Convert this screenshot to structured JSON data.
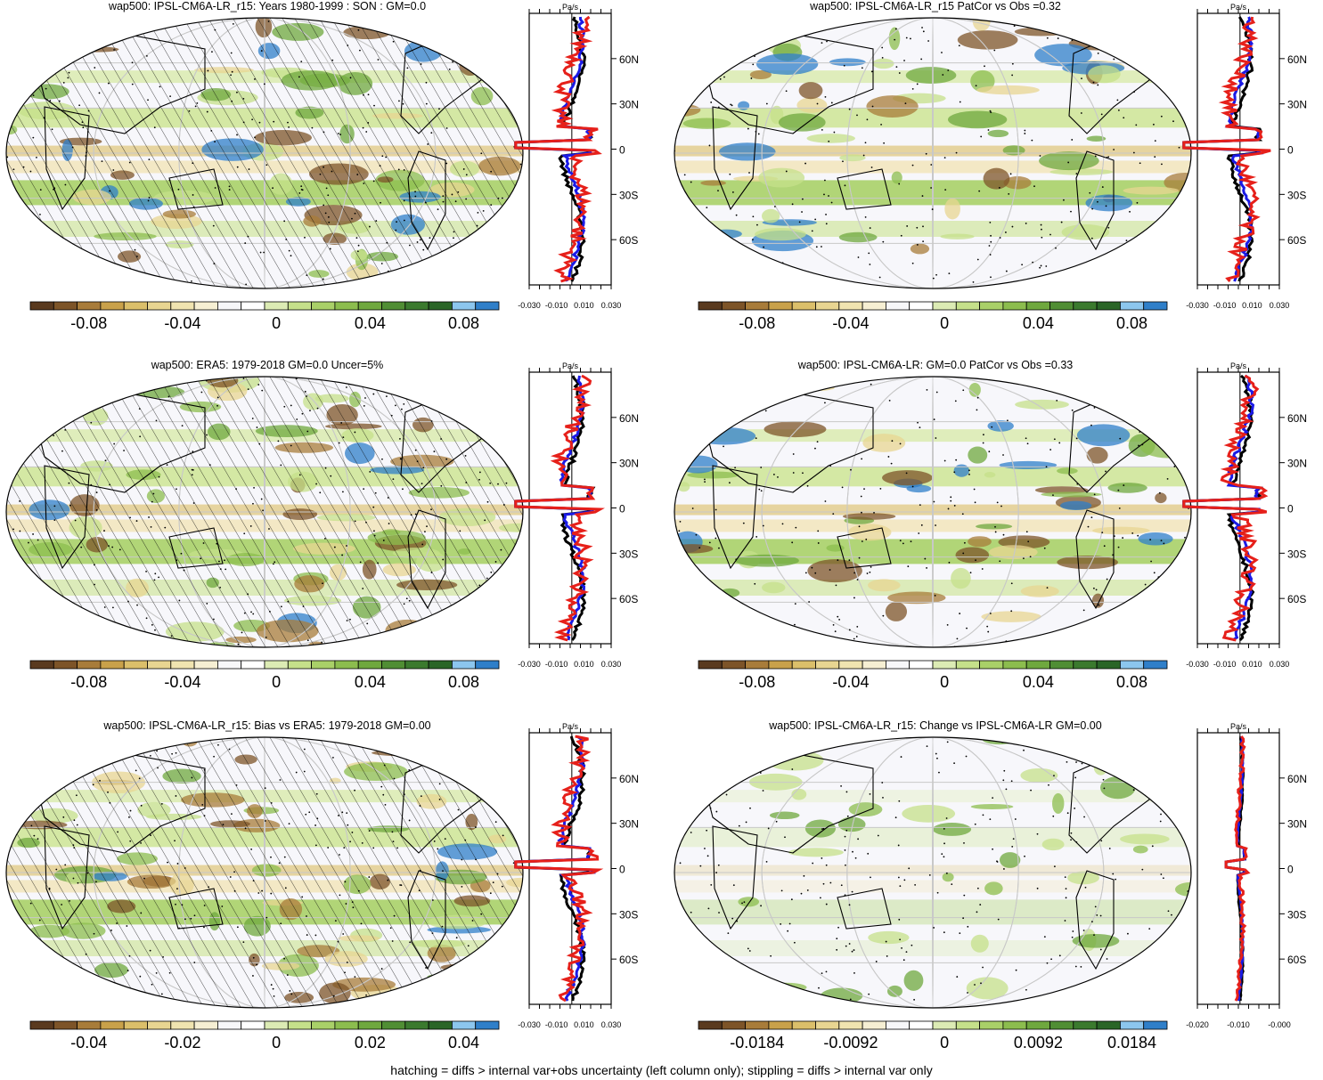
{
  "panels": [
    {
      "title": "wap500: IPSL-CM6A-LR_r15: Years 1980-1999 : SON : GM=0.0",
      "colorbar_ticks": [
        "-0.08",
        "-0.04",
        "0",
        "0.04",
        "0.08"
      ],
      "profile_unit": "Pa/s",
      "profile_xticks": [
        "-0.030",
        "-0.010",
        "0.010",
        "0.030"
      ],
      "lat_labels": [
        "60N",
        "30N",
        "0",
        "30S",
        "60S"
      ],
      "hatched": true,
      "profile_series": [
        "black",
        "blue",
        "red"
      ]
    },
    {
      "title": "wap500: IPSL-CM6A-LR_r15 PatCor vs Obs =0.32",
      "colorbar_ticks": [
        "-0.08",
        "-0.04",
        "0",
        "0.04",
        "0.08"
      ],
      "profile_unit": "Pa/s",
      "profile_xticks": [
        "-0.030",
        "-0.010",
        "0.010",
        "0.030"
      ],
      "lat_labels": [
        "60N",
        "30N",
        "0",
        "30S",
        "60S"
      ],
      "hatched": false,
      "profile_series": [
        "black",
        "blue",
        "red"
      ]
    },
    {
      "title": "wap500: ERA5: 1979-2018 GM=0.0 Uncer=5%",
      "colorbar_ticks": [
        "-0.08",
        "-0.04",
        "0",
        "0.04",
        "0.08"
      ],
      "profile_unit": "Pa/s",
      "profile_xticks": [
        "-0.030",
        "-0.010",
        "0.010",
        "0.030"
      ],
      "lat_labels": [
        "60N",
        "30N",
        "0",
        "30S",
        "60S"
      ],
      "hatched": true,
      "profile_series": [
        "black",
        "blue",
        "red"
      ]
    },
    {
      "title": "wap500: IPSL-CM6A-LR: GM=0.0 PatCor vs Obs =0.33",
      "colorbar_ticks": [
        "-0.08",
        "-0.04",
        "0",
        "0.04",
        "0.08"
      ],
      "profile_unit": "Pa/s",
      "profile_xticks": [
        "-0.030",
        "-0.010",
        "0.010",
        "0.030"
      ],
      "lat_labels": [
        "60N",
        "30N",
        "0",
        "30S",
        "60S"
      ],
      "hatched": false,
      "profile_series": [
        "black",
        "blue",
        "red"
      ]
    },
    {
      "title": "wap500: IPSL-CM6A-LR_r15: Bias vs ERA5: 1979-2018  GM=0.00",
      "colorbar_ticks": [
        "-0.04",
        "-0.02",
        "0",
        "0.02",
        "0.04"
      ],
      "profile_unit": "Pa/s",
      "profile_xticks": [
        "-0.030",
        "-0.010",
        "0.010",
        "0.030"
      ],
      "lat_labels": [
        "60N",
        "30N",
        "0",
        "30S",
        "60S"
      ],
      "hatched": true,
      "profile_series": [
        "black",
        "blue",
        "red"
      ]
    },
    {
      "title": "wap500: IPSL-CM6A-LR_r15: Change vs IPSL-CM6A-LR GM=0.00",
      "colorbar_ticks": [
        "-0.0184",
        "-0.0092",
        "0",
        "0.0092",
        "0.0184"
      ],
      "profile_unit": "Pa/s",
      "profile_xticks": [
        "-0.020",
        "-0.010",
        "-0.000"
      ],
      "lat_labels": [
        "60N",
        "30N",
        "0",
        "30S",
        "60S"
      ],
      "hatched": false,
      "profile_series": [
        "black",
        "blue",
        "red"
      ]
    }
  ],
  "colorbar_colors": [
    "#5a3a1f",
    "#7d5428",
    "#a87c3a",
    "#c9a14a",
    "#dbbf6a",
    "#e8d591",
    "#f0e4b0",
    "#f6efd3",
    "#f7f7f9",
    "#ffffff",
    "#dcebb4",
    "#c5e08a",
    "#a9d068",
    "#8cbd4e",
    "#6fa83e",
    "#508e34",
    "#3b7a2e",
    "#2a6527",
    "#8cc6ee",
    "#2f7fc9"
  ],
  "footnote": "hatching = diffs > internal var+obs uncertainty (left column only); stippling = diffs > internal var only"
}
